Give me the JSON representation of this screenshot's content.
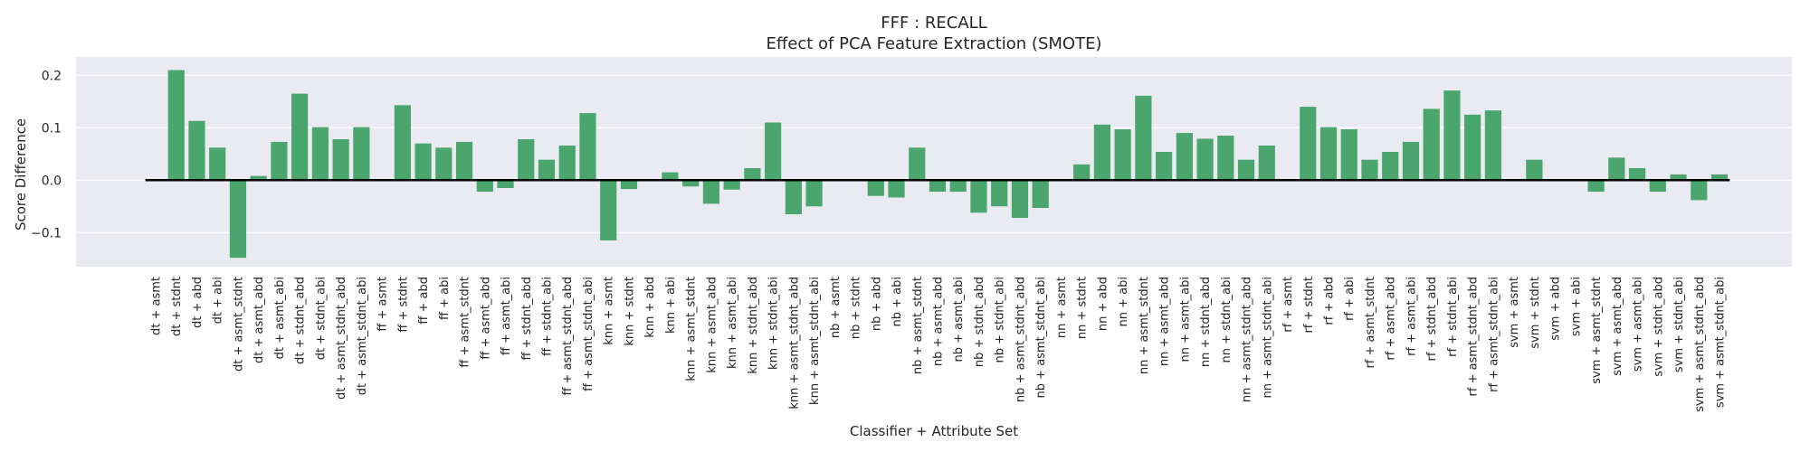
{
  "chart_data": {
    "type": "bar",
    "title": "FFF : RECALL",
    "subtitle": "Effect of PCA Feature Extraction (SMOTE)",
    "xlabel": "Classifier + Attribute Set",
    "ylabel": "Score Difference",
    "ylim": [
      -0.165,
      0.235
    ],
    "yticks": [
      -0.1,
      0.0,
      0.1,
      0.2
    ],
    "ytick_labels": [
      "−0.1",
      "0.0",
      "0.1",
      "0.2"
    ],
    "grid": true,
    "bar_color": "#4ba66d",
    "zero_line_color": "#000000",
    "background_color": "#eaeaf2",
    "categories": [
      "dt + asmt",
      "dt + stdnt",
      "dt + abd",
      "dt + abi",
      "dt + asmt_stdnt",
      "dt + asmt_abd",
      "dt + asmt_abi",
      "dt + stdnt_abd",
      "dt + stdnt_abi",
      "dt + asmt_stdnt_abd",
      "dt + asmt_stdnt_abi",
      "ff + asmt",
      "ff + stdnt",
      "ff + abd",
      "ff + abi",
      "ff + asmt_stdnt",
      "ff + asmt_abd",
      "ff + asmt_abi",
      "ff + stdnt_abd",
      "ff + stdnt_abi",
      "ff + asmt_stdnt_abd",
      "ff + asmt_stdnt_abi",
      "knn + asmt",
      "knn + stdnt",
      "knn + abd",
      "knn + abi",
      "knn + asmt_stdnt",
      "knn + asmt_abd",
      "knn + asmt_abi",
      "knn + stdnt_abd",
      "knn + stdnt_abi",
      "knn + asmt_stdnt_abd",
      "knn + asmt_stdnt_abi",
      "nb + asmt",
      "nb + stdnt",
      "nb + abd",
      "nb + abi",
      "nb + asmt_stdnt",
      "nb + asmt_abd",
      "nb + asmt_abi",
      "nb + stdnt_abd",
      "nb + stdnt_abi",
      "nb + asmt_stdnt_abd",
      "nb + asmt_stdnt_abi",
      "nn + asmt",
      "nn + stdnt",
      "nn + abd",
      "nn + abi",
      "nn + asmt_stdnt",
      "nn + asmt_abd",
      "nn + asmt_abi",
      "nn + stdnt_abd",
      "nn + stdnt_abi",
      "nn + asmt_stdnt_abd",
      "nn + asmt_stdnt_abi",
      "rf + asmt",
      "rf + stdnt",
      "rf + abd",
      "rf + abi",
      "rf + asmt_stdnt",
      "rf + asmt_abd",
      "rf + asmt_abi",
      "rf + stdnt_abd",
      "rf + stdnt_abi",
      "rf + asmt_stdnt_abd",
      "rf + asmt_stdnt_abi",
      "svm + asmt",
      "svm + stdnt",
      "svm + abd",
      "svm + abi",
      "svm + asmt_stdnt",
      "svm + asmt_abd",
      "svm + asmt_abi",
      "svm + stdnt_abd",
      "svm + stdnt_abi",
      "svm + asmt_stdnt_abd",
      "svm + asmt_stdnt_abi"
    ],
    "values": [
      0.0,
      0.21,
      0.113,
      0.062,
      -0.148,
      0.008,
      0.073,
      0.165,
      0.101,
      0.078,
      0.101,
      0.0,
      0.143,
      0.07,
      0.062,
      0.073,
      -0.022,
      -0.015,
      0.078,
      0.039,
      0.066,
      0.128,
      -0.115,
      -0.017,
      0.0,
      0.015,
      -0.012,
      -0.045,
      -0.018,
      0.023,
      0.11,
      -0.065,
      -0.05,
      0.0,
      0.0,
      -0.03,
      -0.033,
      0.062,
      -0.022,
      -0.022,
      -0.062,
      -0.05,
      -0.072,
      -0.053,
      0.0,
      0.03,
      0.106,
      0.097,
      0.161,
      0.054,
      0.09,
      0.079,
      0.085,
      0.039,
      0.066,
      0.0,
      0.14,
      0.101,
      0.097,
      0.039,
      0.054,
      0.073,
      0.136,
      0.171,
      0.125,
      0.133,
      0.0,
      0.039,
      0.0,
      0.0,
      -0.022,
      0.043,
      0.023,
      -0.022,
      0.011,
      -0.038,
      0.011
    ]
  }
}
